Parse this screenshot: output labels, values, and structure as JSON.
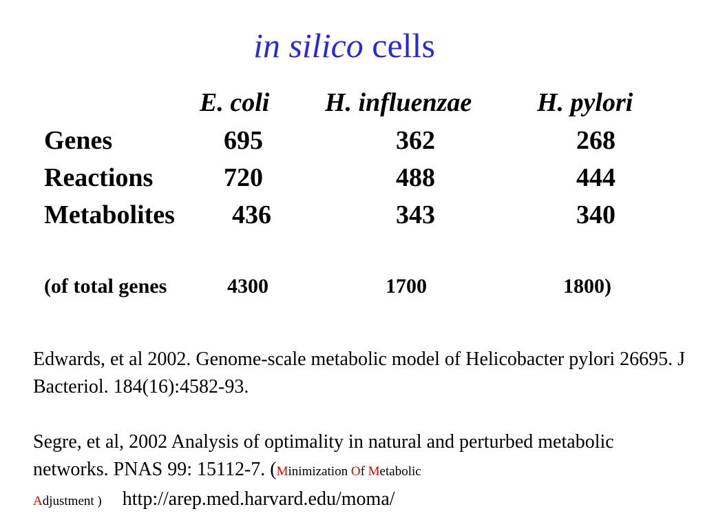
{
  "title": {
    "italic": "in silico",
    "rest": "cells"
  },
  "table": {
    "columns": [
      "E. coli",
      "H. influenzae",
      "H. pylori"
    ],
    "rows": [
      {
        "label": "Genes",
        "values": [
          "695",
          "362",
          "268"
        ]
      },
      {
        "label": "Reactions",
        "values": [
          "720",
          "488",
          "444"
        ]
      },
      {
        "label": "Metabolites",
        "values": [
          "436",
          "343",
          "340"
        ]
      }
    ],
    "total": {
      "label": "(of total genes",
      "values": [
        "4300",
        "1700",
        "1800"
      ],
      "close": ")"
    }
  },
  "references": {
    "ref1": "Edwards, et al  2002. Genome-scale metabolic model of Helicobacter pylori 26695. J Bacteriol. 184(16):4582-93.",
    "ref2_main": "Segre, et al, 2002 Analysis of optimality in natural and perturbed metabolic networks. PNAS 99: 15112-7. (",
    "moma": {
      "M": "M",
      "inimization": "inimization ",
      "O": "O",
      "f": "f ",
      "M2": "M",
      "etabolic": "etabolic",
      "A": "A",
      "djustment": "djustment )"
    },
    "url": "http://arep.med.harvard.edu/moma/"
  },
  "colors": {
    "title": "#2a2ad0",
    "highlight": "#e00000",
    "text": "#000000"
  }
}
